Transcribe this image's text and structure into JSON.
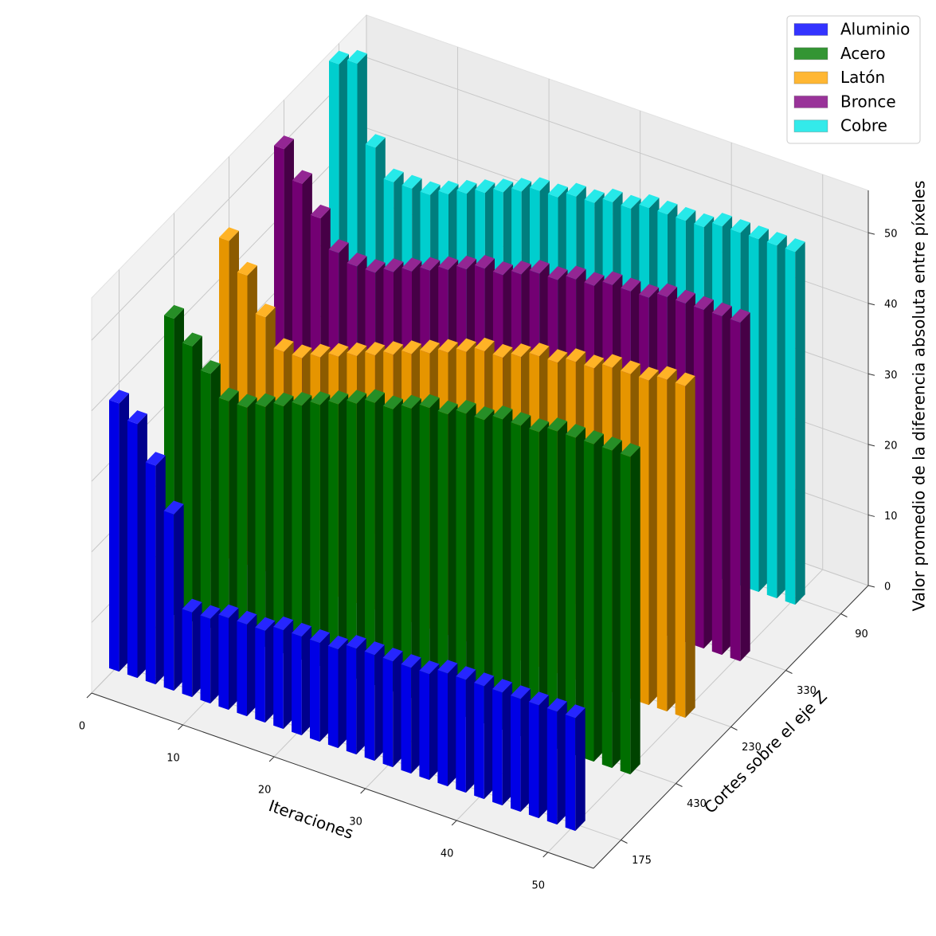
{
  "chart_data": {
    "type": "bar3d",
    "x_label": "Iteraciones",
    "y_label": "Cortes sobre el eje Z",
    "z_label": "Valor promedio de la diferencia absoluta entre píxeles",
    "x": [
      0,
      2,
      4,
      6,
      8,
      10,
      12,
      14,
      16,
      18,
      20,
      22,
      24,
      26,
      28,
      30,
      32,
      34,
      36,
      38,
      40,
      42,
      44,
      46,
      48,
      50
    ],
    "categories": [
      "175",
      "430",
      "230",
      "330",
      "90"
    ],
    "series": [
      {
        "name": "Aluminio",
        "color": "#0000ff",
        "values": [
          38,
          36,
          31,
          25,
          12,
          12,
          13,
          13,
          13,
          14,
          14,
          14,
          14,
          15,
          15,
          15,
          15,
          15,
          16,
          16,
          16,
          16,
          16,
          16,
          16,
          16
        ]
      },
      {
        "name": "Acero",
        "color": "#007a00",
        "values": [
          42,
          39,
          36,
          33,
          33,
          34,
          35,
          36,
          37,
          38,
          39,
          40,
          40,
          41,
          42,
          42,
          43,
          43,
          44,
          44,
          44,
          45,
          45,
          45,
          45,
          45
        ]
      },
      {
        "name": "Latón",
        "color": "#ffa500",
        "values": [
          45,
          41,
          36,
          32,
          32,
          33,
          34,
          35,
          36,
          37,
          38,
          39,
          40,
          41,
          42,
          42,
          43,
          44,
          44,
          45,
          45,
          46,
          46,
          46,
          47,
          47
        ]
      },
      {
        "name": "Bronce",
        "color": "#800080",
        "values": [
          50,
          46,
          42,
          38,
          37,
          37,
          38,
          39,
          40,
          41,
          42,
          43,
          43,
          44,
          45,
          45,
          46,
          46,
          47,
          47,
          47,
          48,
          48,
          48,
          48,
          48
        ]
      },
      {
        "name": "Cobre",
        "color": "#00e5e5",
        "values": [
          54,
          55,
          44,
          40,
          40,
          40,
          41,
          42,
          43,
          44,
          45,
          46,
          46,
          47,
          47,
          48,
          48,
          49,
          49,
          49,
          49,
          50,
          50,
          50,
          50,
          50
        ]
      }
    ],
    "xlim": [
      0,
      55
    ],
    "xticks": [
      0,
      10,
      20,
      30,
      40,
      50
    ],
    "zlim": [
      0,
      56
    ],
    "zticks": [
      0,
      10,
      20,
      30,
      40,
      50
    ],
    "grid": true,
    "legend": "upper right"
  }
}
